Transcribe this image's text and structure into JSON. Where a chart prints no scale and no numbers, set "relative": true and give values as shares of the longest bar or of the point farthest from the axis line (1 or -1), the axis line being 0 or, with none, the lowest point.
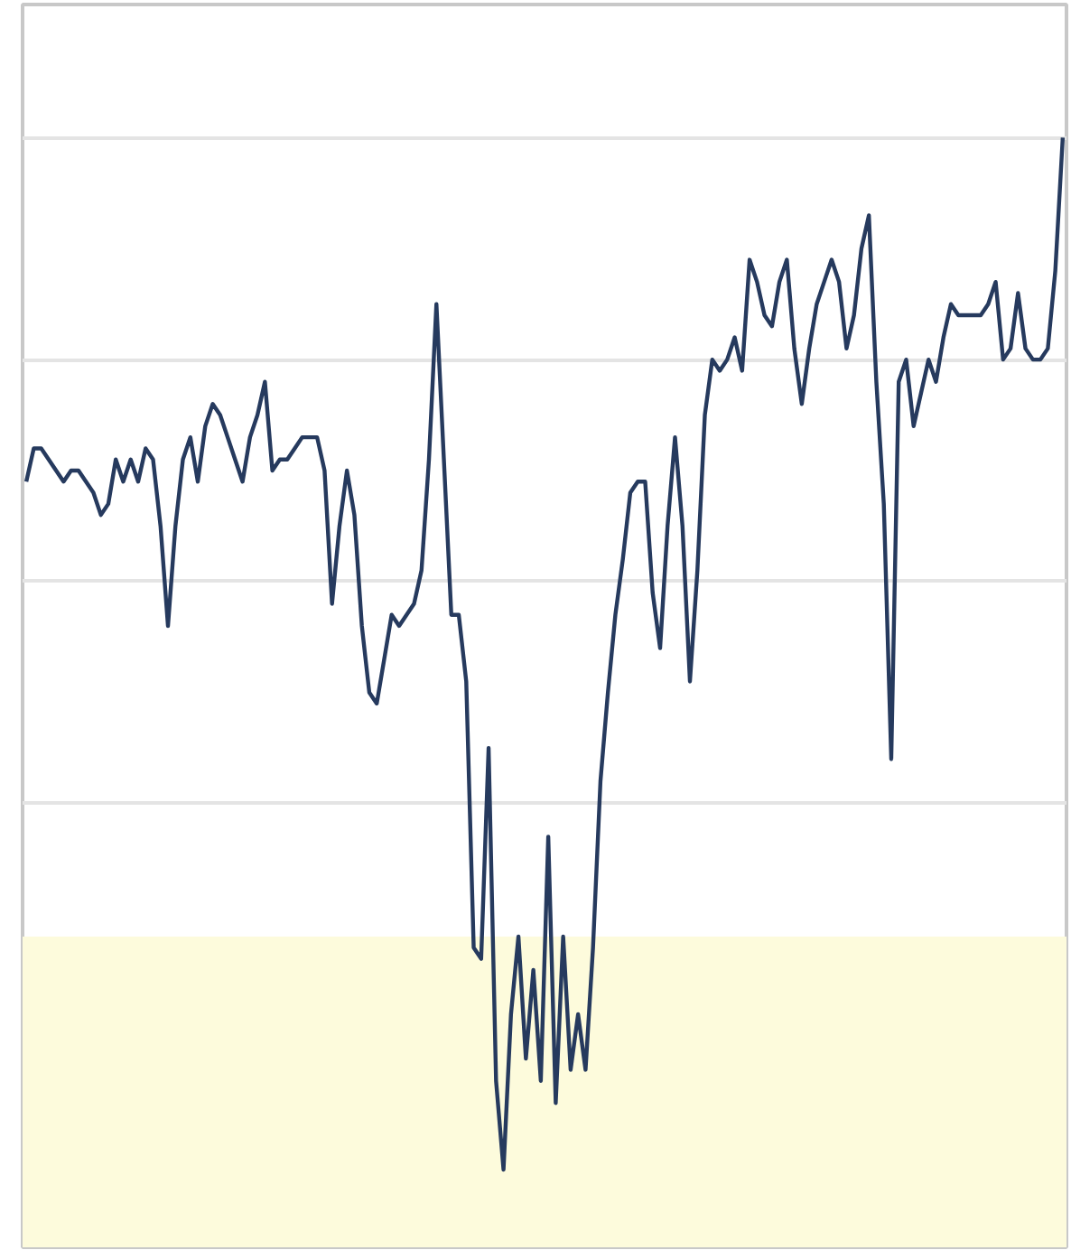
{
  "chart_data": {
    "type": "line",
    "relative": true,
    "grid": "y",
    "tick_labels": false,
    "categories": [
      null,
      null,
      null,
      null,
      null,
      null,
      null,
      null,
      null,
      null,
      null,
      null,
      null,
      null,
      null,
      null,
      null,
      null,
      null,
      null,
      null,
      null,
      null,
      null,
      null,
      null,
      null,
      null,
      null,
      null,
      null,
      null,
      null,
      null,
      null,
      null,
      null,
      null,
      null,
      null,
      null,
      null,
      null,
      null,
      null,
      null,
      null,
      null,
      null,
      null,
      null,
      null,
      null,
      null,
      null,
      null,
      null,
      null,
      null,
      null,
      null,
      null,
      null,
      null,
      null,
      null,
      null,
      null,
      null,
      null,
      null,
      null,
      null,
      null,
      null,
      null,
      null,
      null,
      null,
      null,
      null,
      null,
      null,
      null,
      null,
      null,
      null,
      null,
      null,
      null,
      null,
      null,
      null,
      null,
      null,
      null,
      null,
      null,
      null,
      null,
      null,
      null,
      null,
      null,
      null,
      null,
      null,
      null,
      null,
      null,
      null,
      null,
      null,
      null,
      null,
      null,
      null,
      null,
      null,
      null,
      null,
      null,
      null,
      null,
      null,
      null,
      null,
      null,
      null,
      null,
      null,
      null,
      null,
      null,
      null,
      null,
      null,
      null,
      null,
      null
    ],
    "series": [
      {
        "color": "#263a5e",
        "values": [
          0.69,
          0.72,
          0.72,
          0.71,
          0.7,
          0.69,
          0.7,
          0.7,
          0.69,
          0.68,
          0.66,
          0.67,
          0.71,
          0.69,
          0.71,
          0.69,
          0.72,
          0.71,
          0.65,
          0.56,
          0.65,
          0.71,
          0.73,
          0.69,
          0.74,
          0.76,
          0.75,
          0.73,
          0.71,
          0.69,
          0.73,
          0.75,
          0.78,
          0.7,
          0.71,
          0.71,
          0.72,
          0.73,
          0.73,
          0.73,
          0.7,
          0.58,
          0.65,
          0.7,
          0.66,
          0.56,
          0.5,
          0.49,
          0.53,
          0.57,
          0.56,
          0.57,
          0.58,
          0.61,
          0.71,
          0.85,
          0.71,
          0.57,
          0.57,
          0.51,
          0.27,
          0.26,
          0.45,
          0.15,
          0.07,
          0.21,
          0.28,
          0.17,
          0.25,
          0.15,
          0.37,
          0.13,
          0.28,
          0.16,
          0.21,
          0.16,
          0.27,
          0.42,
          0.5,
          0.57,
          0.62,
          0.68,
          0.69,
          0.69,
          0.59,
          0.54,
          0.65,
          0.73,
          0.65,
          0.51,
          0.61,
          0.75,
          0.8,
          0.79,
          0.8,
          0.82,
          0.79,
          0.89,
          0.87,
          0.84,
          0.83,
          0.87,
          0.89,
          0.81,
          0.76,
          0.81,
          0.85,
          0.87,
          0.89,
          0.87,
          0.81,
          0.84,
          0.9,
          0.93,
          0.78,
          0.67,
          0.44,
          0.78,
          0.8,
          0.74,
          0.77,
          0.8,
          0.78,
          0.82,
          0.85,
          0.84,
          0.84,
          0.84,
          0.84,
          0.85,
          0.87,
          0.8,
          0.81,
          0.86,
          0.81,
          0.8,
          0.8,
          0.81,
          0.88,
          1
        ]
      }
    ],
    "bands": [
      {
        "axis": "y",
        "from": 0,
        "to": 0.28,
        "color": "#fdfbdc"
      }
    ]
  }
}
